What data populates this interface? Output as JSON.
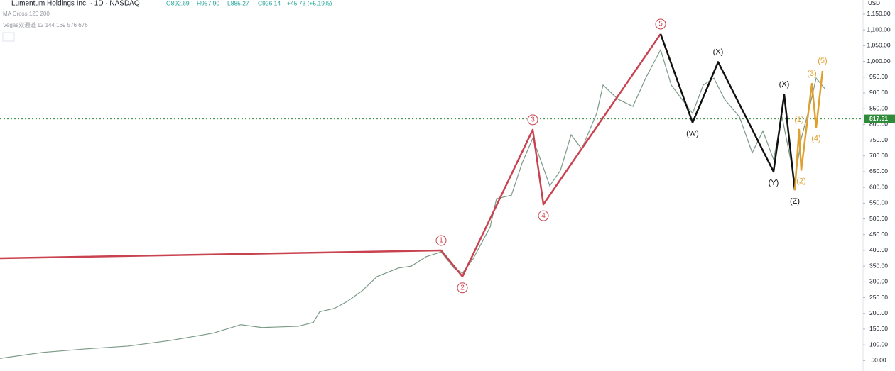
{
  "chart_data": {
    "type": "line",
    "header": {
      "symbol": "Lumentum Holdings Inc. · 1D · NASDAQ",
      "open": "O892.69",
      "high": "H957.90",
      "low": "L885.27",
      "close": "C926.14",
      "change": "+45.73 (+5.19%)"
    },
    "indicators": [
      "MA Cross 120 200",
      "Vegas双通道 12 144 169 576 676"
    ],
    "currency": "USD",
    "price_line": {
      "value": 817.51,
      "label": "817.51",
      "color": "#2e8b3a"
    },
    "xlim": [
      0,
      405
    ],
    "ylim": [
      17,
      1195
    ],
    "yticks": [
      {
        "value": 50,
        "label": "50.00"
      },
      {
        "value": 100,
        "label": "100.00"
      },
      {
        "value": 150,
        "label": "150.00"
      },
      {
        "value": 200,
        "label": "200.00"
      },
      {
        "value": 250,
        "label": "250.00"
      },
      {
        "value": 300,
        "label": "300.00"
      },
      {
        "value": 350,
        "label": "350.00"
      },
      {
        "value": 400,
        "label": "400.00"
      },
      {
        "value": 450,
        "label": "450.00"
      },
      {
        "value": 500,
        "label": "500.00"
      },
      {
        "value": 550,
        "label": "550.00"
      },
      {
        "value": 600,
        "label": "600.00"
      },
      {
        "value": 650,
        "label": "650.00"
      },
      {
        "value": 700,
        "label": "700.00"
      },
      {
        "value": 750,
        "label": "750.00"
      },
      {
        "value": 800,
        "label": "800.00"
      },
      {
        "value": 850,
        "label": "850.00"
      },
      {
        "value": 900,
        "label": "900.00"
      },
      {
        "value": 950,
        "label": "950.00"
      },
      {
        "value": 1000,
        "label": "1,000.00"
      },
      {
        "value": 1050,
        "label": "1,050.00"
      },
      {
        "value": 1100,
        "label": "1,100.00"
      },
      {
        "value": 1150,
        "label": "1,150.00"
      }
    ],
    "series": [
      {
        "color": "#7a9a86",
        "x": [
          0,
          20,
          40,
          60,
          80,
          100,
          113,
          123,
          140,
          147,
          150,
          157,
          163,
          170,
          177,
          187,
          193,
          200,
          207,
          213,
          217,
          222,
          230,
          233,
          240,
          245,
          250,
          253,
          258,
          263,
          268,
          273,
          280,
          283,
          290,
          297,
          303,
          310,
          315,
          320,
          325,
          330,
          335,
          340,
          347,
          353,
          358,
          363,
          367,
          373,
          376,
          380,
          383,
          387
        ],
        "values": [
          57,
          76,
          87,
          96,
          114,
          137,
          164,
          155,
          159,
          171,
          205,
          216,
          238,
          272,
          317,
          344,
          350,
          380,
          395,
          344,
          328,
          373,
          474,
          564,
          575,
          677,
          756,
          700,
          605,
          654,
          767,
          722,
          835,
          925,
          880,
          857,
          947,
          1037,
          925,
          880,
          835,
          925,
          947,
          880,
          824,
          710,
          779,
          689,
          824,
          620,
          755,
          857,
          947,
          914
        ]
      }
    ],
    "waves": [
      {
        "color": "#c9424f",
        "circled": true,
        "x": [
          0,
          207,
          217,
          250,
          255,
          310
        ],
        "values": [
          375,
          400,
          317,
          783,
          546,
          1087
        ],
        "labels": [
          null,
          "1",
          "2",
          "3",
          "4",
          "5"
        ]
      },
      {
        "color": "#111111",
        "circled": false,
        "x": [
          310,
          325,
          337,
          363,
          368,
          373
        ],
        "values": [
          1087,
          806,
          998,
          650,
          895,
          591
        ],
        "labels": [
          null,
          "(W)",
          "(X)",
          "(Y)",
          "(X)",
          "(Z)"
        ]
      },
      {
        "color": "#e0a030",
        "circled": false,
        "x": [
          373,
          375,
          376,
          381,
          383,
          386
        ],
        "values": [
          591,
          783,
          655,
          929,
          790,
          970
        ],
        "labels": [
          null,
          "(1)",
          "(2)",
          "(3)",
          "(4)",
          "(5)"
        ]
      }
    ]
  }
}
